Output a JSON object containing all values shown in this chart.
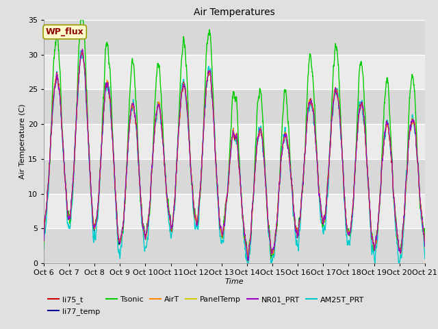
{
  "title": "Air Temperatures",
  "xlabel": "Time",
  "ylabel": "Air Temperature (C)",
  "ylim": [
    0,
    35
  ],
  "xlim": [
    0,
    15
  ],
  "x_tick_labels": [
    "Oct 6",
    "Oct 7",
    "Oct 8",
    "Oct 9",
    "Oct 10",
    "Oct 11",
    "Oct 12",
    "Oct 13",
    "Oct 14",
    "Oct 15",
    "Oct 16",
    "Oct 17",
    "Oct 18",
    "Oct 19",
    "Oct 20",
    "Oct 21"
  ],
  "annotation_text": "WP_flux",
  "annotation_color": "#8B0000",
  "annotation_bg": "#FFFACD",
  "annotation_border": "#999900",
  "series": [
    {
      "name": "li75_t",
      "color": "#CC0000",
      "lw": 0.8,
      "zorder": 5
    },
    {
      "name": "li77_temp",
      "color": "#000099",
      "lw": 0.8,
      "zorder": 4
    },
    {
      "name": "Tsonic",
      "color": "#00CC00",
      "lw": 1.0,
      "zorder": 3
    },
    {
      "name": "AirT",
      "color": "#FF8800",
      "lw": 0.8,
      "zorder": 5
    },
    {
      "name": "PanelTemp",
      "color": "#CCCC00",
      "lw": 0.8,
      "zorder": 4
    },
    {
      "name": "NR01_PRT",
      "color": "#9900CC",
      "lw": 0.8,
      "zorder": 5
    },
    {
      "name": "AM25T_PRT",
      "color": "#00CCCC",
      "lw": 1.0,
      "zorder": 2
    }
  ],
  "bg_color": "#E0E0E0",
  "plot_bg": "#D8D8D8",
  "grid_color": "#BBBBBB",
  "n_days": 15,
  "pts_per_day": 144
}
